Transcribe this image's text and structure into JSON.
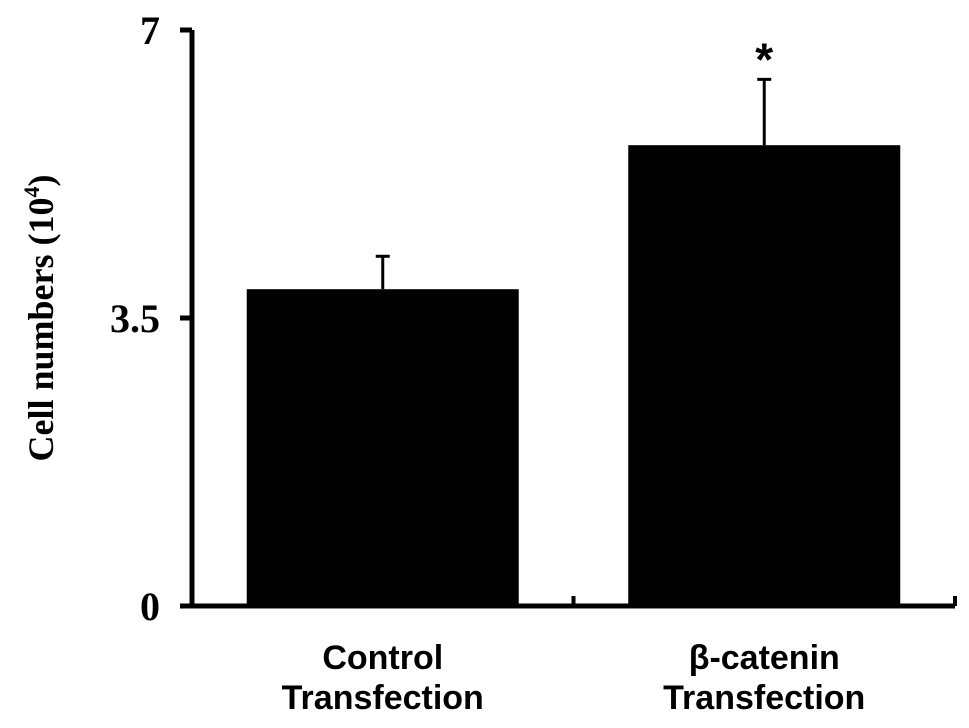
{
  "chart_data": {
    "type": "bar",
    "categories": [
      [
        "Control",
        "Transfection"
      ],
      [
        "β-catenin",
        "Transfection"
      ]
    ],
    "values": [
      3.85,
      5.6
    ],
    "error": [
      0.4,
      0.8
    ],
    "significance": [
      "",
      "*"
    ],
    "ylabel": {
      "main": "Cell numbers (10",
      "superscript": "4",
      "close": ")"
    },
    "ylim": [
      0,
      7
    ],
    "yticks": [
      0,
      3.5,
      7
    ],
    "ytick_labels": [
      "0",
      "3.5",
      "7"
    ],
    "bar_color": "#000000",
    "grid": false,
    "legend": "none"
  }
}
